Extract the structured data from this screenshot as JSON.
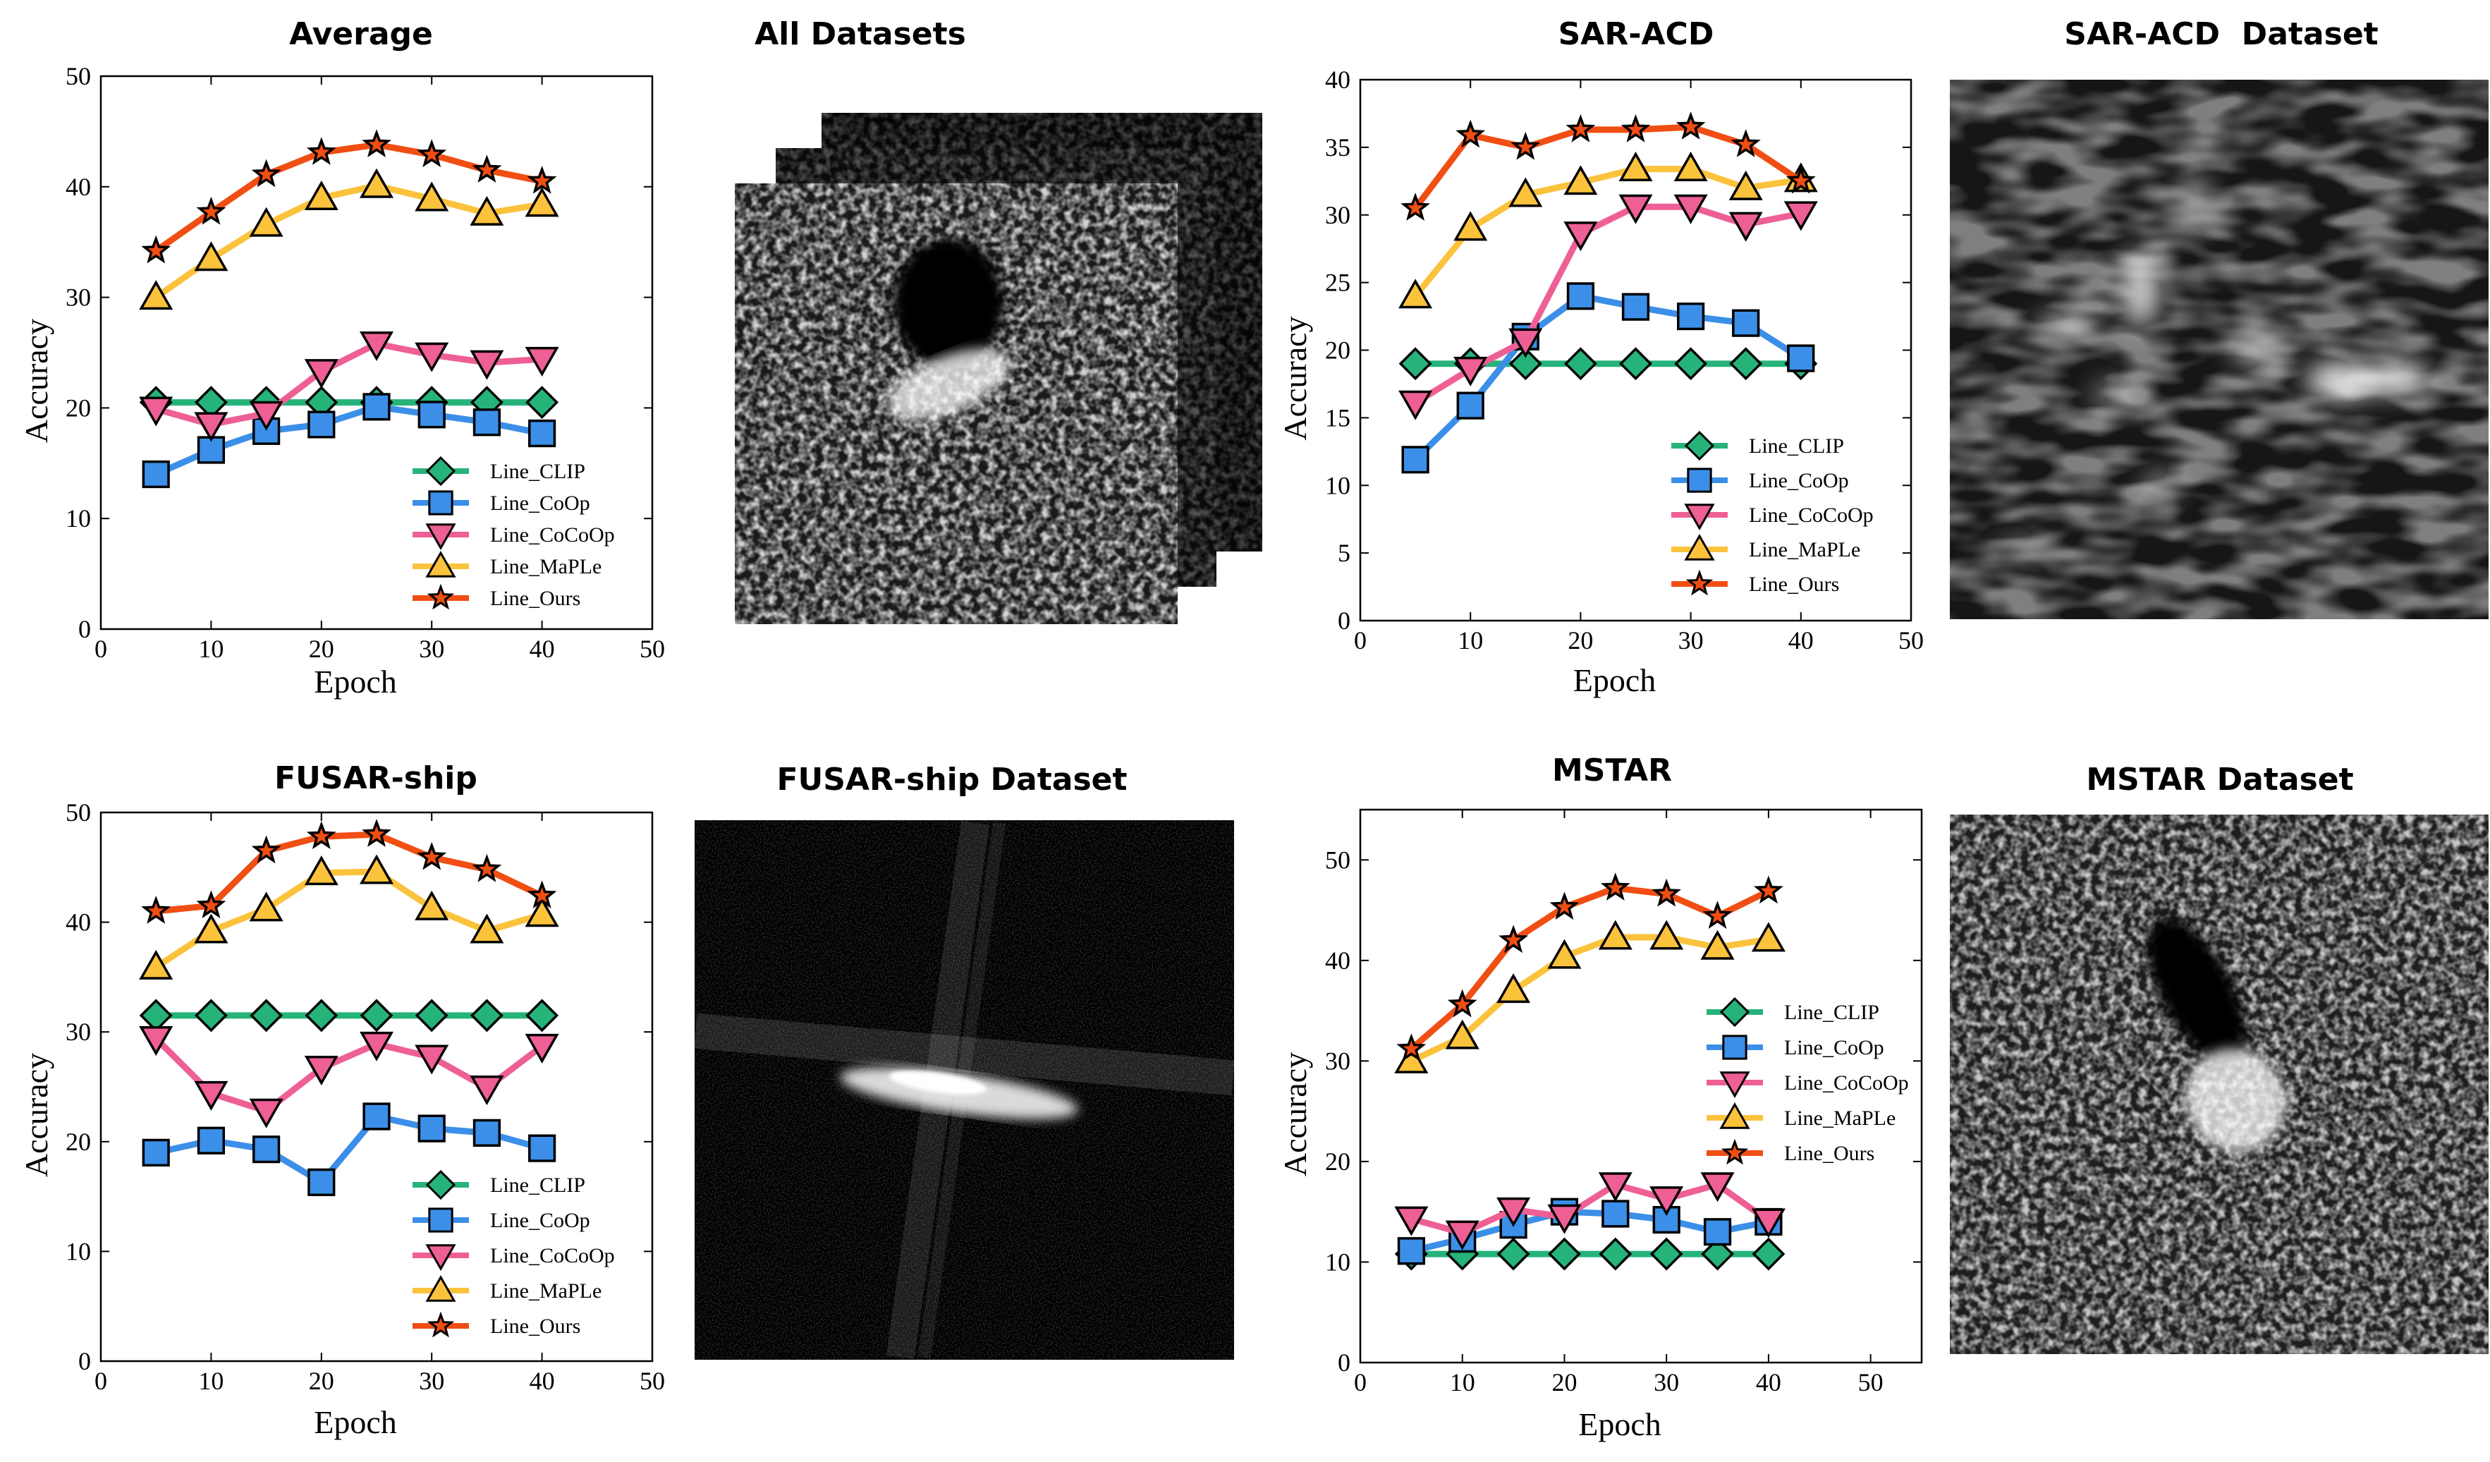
{
  "colors": {
    "Line_CLIP": "#26b37a",
    "Line_CoOp": "#3b8fe8",
    "Line_CoCoOp": "#ee5f95",
    "Line_MaPLe": "#fbc23c",
    "Line_Ours": "#f04e13"
  },
  "images": [
    {
      "title": "All Datasets",
      "description": "stacked SAR image tiles"
    },
    {
      "title": "SAR-ACD  Dataset",
      "description": "SAR aircraft image"
    },
    {
      "title": "FUSAR-ship Dataset",
      "description": "SAR ship image"
    },
    {
      "title": "MSTAR Dataset",
      "description": "SAR vehicle image"
    }
  ],
  "chart_data": [
    {
      "type": "line",
      "title": "Average",
      "xlabel": "Epoch",
      "ylabel": "Accuracy",
      "xlim": [
        0,
        50
      ],
      "ylim": [
        0,
        50
      ],
      "xticks": [
        0,
        10,
        20,
        30,
        40,
        50
      ],
      "yticks": [
        0,
        10,
        20,
        30,
        40,
        50
      ],
      "x": [
        5,
        10,
        15,
        20,
        25,
        30,
        35,
        40
      ],
      "series": [
        {
          "name": "Line_CLIP",
          "marker": "diamond",
          "values": [
            20.5,
            20.5,
            20.5,
            20.5,
            20.5,
            20.5,
            20.5,
            20.5
          ]
        },
        {
          "name": "Line_CoOp",
          "marker": "square",
          "values": [
            14.0,
            16.2,
            17.9,
            18.5,
            20.1,
            19.4,
            18.7,
            17.7
          ]
        },
        {
          "name": "Line_CoCoOp",
          "marker": "triangle-down",
          "values": [
            19.9,
            18.5,
            19.5,
            23.3,
            25.8,
            24.8,
            24.1,
            24.4
          ]
        },
        {
          "name": "Line_MaPLe",
          "marker": "triangle-up",
          "values": [
            30.0,
            33.5,
            36.6,
            39.0,
            40.1,
            38.9,
            37.6,
            38.4
          ]
        },
        {
          "name": "Line_Ours",
          "marker": "star",
          "values": [
            34.2,
            37.7,
            41.1,
            43.1,
            43.8,
            42.9,
            41.5,
            40.5
          ]
        }
      ]
    },
    {
      "type": "line",
      "title": "SAR-ACD",
      "xlabel": "Epoch",
      "ylabel": "Accuracy",
      "xlim": [
        0,
        50
      ],
      "ylim": [
        0,
        40
      ],
      "xticks": [
        0,
        10,
        20,
        30,
        40,
        50
      ],
      "yticks": [
        0,
        5,
        10,
        15,
        20,
        25,
        30,
        35,
        40
      ],
      "x": [
        5,
        10,
        15,
        20,
        25,
        30,
        35,
        40
      ],
      "series": [
        {
          "name": "Line_CLIP",
          "marker": "diamond",
          "values": [
            19.0,
            19.0,
            19.0,
            19.0,
            19.0,
            19.0,
            19.0,
            19.0
          ]
        },
        {
          "name": "Line_CoOp",
          "marker": "square",
          "values": [
            11.9,
            15.9,
            21.0,
            24.0,
            23.2,
            22.5,
            22.0,
            19.4
          ]
        },
        {
          "name": "Line_CoCoOp",
          "marker": "triangle-down",
          "values": [
            16.1,
            18.6,
            20.7,
            28.6,
            30.6,
            30.6,
            29.3,
            30.1
          ]
        },
        {
          "name": "Line_MaPLe",
          "marker": "triangle-up",
          "values": [
            24.0,
            29.0,
            31.5,
            32.4,
            33.4,
            33.4,
            32.0,
            32.6
          ]
        },
        {
          "name": "Line_Ours",
          "marker": "star",
          "values": [
            30.5,
            35.9,
            35.0,
            36.3,
            36.3,
            36.5,
            35.2,
            32.5
          ]
        }
      ]
    },
    {
      "type": "line",
      "title": "FUSAR-ship",
      "xlabel": "Epoch",
      "ylabel": "Accuracy",
      "xlim": [
        0,
        50
      ],
      "ylim": [
        0,
        50
      ],
      "xticks": [
        0,
        10,
        20,
        30,
        40,
        50
      ],
      "yticks": [
        0,
        10,
        20,
        30,
        40,
        50
      ],
      "x": [
        5,
        10,
        15,
        20,
        25,
        30,
        35,
        40
      ],
      "series": [
        {
          "name": "Line_CLIP",
          "marker": "diamond",
          "values": [
            31.5,
            31.5,
            31.5,
            31.5,
            31.5,
            31.5,
            31.5,
            31.5
          ]
        },
        {
          "name": "Line_CoOp",
          "marker": "square",
          "values": [
            19.0,
            20.1,
            19.3,
            16.3,
            22.3,
            21.2,
            20.8,
            19.4
          ]
        },
        {
          "name": "Line_CoCoOp",
          "marker": "triangle-down",
          "values": [
            29.4,
            24.4,
            22.8,
            26.7,
            28.9,
            27.7,
            24.9,
            28.7
          ]
        },
        {
          "name": "Line_MaPLe",
          "marker": "triangle-up",
          "values": [
            35.9,
            39.2,
            41.2,
            44.5,
            44.6,
            41.3,
            39.2,
            40.7
          ]
        },
        {
          "name": "Line_Ours",
          "marker": "star",
          "values": [
            41.0,
            41.5,
            46.5,
            47.8,
            48.0,
            45.9,
            44.8,
            42.4
          ]
        }
      ]
    },
    {
      "type": "line",
      "title": "MSTAR",
      "xlabel": "Epoch",
      "ylabel": "Accuracy",
      "xlim": [
        0,
        55
      ],
      "ylim": [
        0,
        55
      ],
      "xticks": [
        0,
        10,
        20,
        30,
        40,
        50
      ],
      "yticks": [
        0,
        10,
        20,
        30,
        40,
        50
      ],
      "x": [
        5,
        10,
        15,
        20,
        25,
        30,
        35,
        40
      ],
      "series": [
        {
          "name": "Line_CLIP",
          "marker": "diamond",
          "values": [
            10.8,
            10.8,
            10.8,
            10.8,
            10.8,
            10.8,
            10.8,
            10.8
          ]
        },
        {
          "name": "Line_CoOp",
          "marker": "square",
          "values": [
            11.1,
            12.3,
            13.7,
            15.0,
            14.8,
            14.2,
            13.0,
            14.0
          ]
        },
        {
          "name": "Line_CoCoOp",
          "marker": "triangle-down",
          "values": [
            14.3,
            12.9,
            15.2,
            14.5,
            17.7,
            16.3,
            17.7,
            14.1
          ]
        },
        {
          "name": "Line_MaPLe",
          "marker": "triangle-up",
          "values": [
            30.0,
            32.4,
            37.0,
            40.4,
            42.3,
            42.3,
            41.3,
            42.1
          ]
        },
        {
          "name": "Line_Ours",
          "marker": "star",
          "values": [
            31.2,
            35.6,
            42.0,
            45.3,
            47.2,
            46.6,
            44.4,
            46.9
          ]
        }
      ]
    }
  ]
}
